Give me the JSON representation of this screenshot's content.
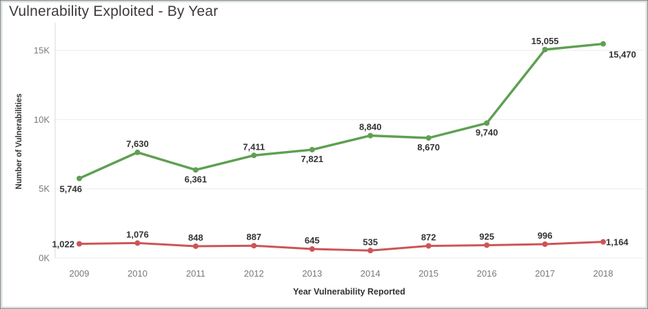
{
  "chart": {
    "title": "Vulnerability Exploited - By Year"
  },
  "chart_data": {
    "type": "line",
    "title": "Vulnerability Exploited - By Year",
    "xlabel": "Year Vulnerability Reported",
    "ylabel": "Number of Vulnerabilities",
    "categories": [
      "2009",
      "2010",
      "2011",
      "2012",
      "2013",
      "2014",
      "2015",
      "2016",
      "2017",
      "2018"
    ],
    "ylim": [
      0,
      16500
    ],
    "y_ticks": [
      {
        "value": 0,
        "label": "0K"
      },
      {
        "value": 5000,
        "label": "5K"
      },
      {
        "value": 10000,
        "label": "10K"
      },
      {
        "value": 15000,
        "label": "15K"
      }
    ],
    "grid": true,
    "legend": "none",
    "series": [
      {
        "name": "green-series",
        "color": "#5fa052",
        "stroke_width": 3.5,
        "values": [
          5746,
          7630,
          6361,
          7411,
          7821,
          8840,
          8670,
          9740,
          15055,
          15470
        ],
        "labels": [
          "5,746",
          "7,630",
          "6,361",
          "7,411",
          "7,821",
          "8,840",
          "8,670",
          "9,740",
          "15,055",
          "15,470"
        ],
        "label_pos": [
          "below-left",
          "above",
          "below",
          "above",
          "below",
          "above",
          "below",
          "below",
          "above",
          "right-below"
        ]
      },
      {
        "name": "red-series",
        "color": "#cd5456",
        "stroke_width": 3,
        "values": [
          1022,
          1076,
          848,
          887,
          645,
          535,
          872,
          925,
          996,
          1164
        ],
        "labels": [
          "1,022",
          "1,076",
          "848",
          "887",
          "645",
          "535",
          "872",
          "925",
          "996",
          "1,164"
        ],
        "label_pos": [
          "left",
          "above",
          "above",
          "above",
          "above",
          "above",
          "above",
          "above",
          "above",
          "right"
        ]
      }
    ]
  }
}
